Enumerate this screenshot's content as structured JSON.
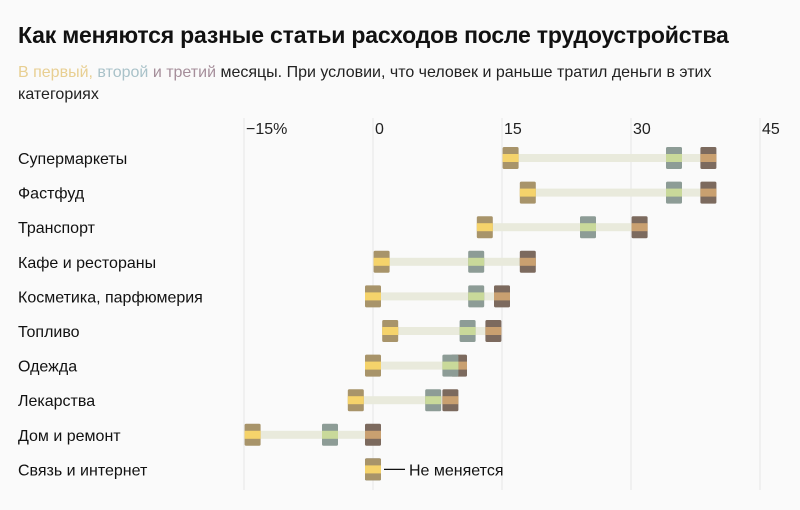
{
  "chart_data": {
    "type": "dot-range",
    "title": "Как меняются разные статьи расходов после трудоустройства",
    "legend": {
      "first": "В первый,",
      "second": "второй",
      "and": "и",
      "third": "третий",
      "rest": "месяцы. При условии, что человек и раньше тратил деньги в этих категориях"
    },
    "x_ticks": [
      -15,
      0,
      15,
      30,
      45
    ],
    "x_tick_labels": [
      "−15%",
      "0",
      "15",
      "30",
      "45"
    ],
    "xlim": [
      -15,
      45
    ],
    "grid": true,
    "series_colors": {
      "first": "#f5d36b",
      "second": "#c9d99a",
      "third": "#c9a070"
    },
    "categories": [
      "Супермаркеты",
      "Фастфуд",
      "Транспорт",
      "Кафе и рестораны",
      "Косметика, парфюмерия",
      "Топливо",
      "Одежда",
      "Лекарства",
      "Дом и ремонт",
      "Связь и интернет"
    ],
    "series": [
      {
        "values": [
          16,
          18,
          13,
          1,
          0,
          2,
          0,
          -2,
          -14,
          0
        ]
      },
      {
        "values": [
          35,
          35,
          25,
          12,
          12,
          11,
          9,
          7,
          -5,
          0
        ]
      },
      {
        "values": [
          39,
          39,
          31,
          18,
          15,
          14,
          10,
          9,
          0,
          0
        ]
      }
    ],
    "annotation": "Не меняется"
  }
}
